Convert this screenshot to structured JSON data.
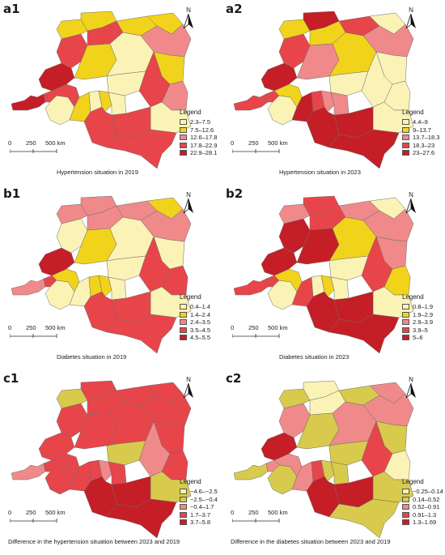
{
  "north_label": "N",
  "legend_title": "Legend",
  "scale": {
    "ticks": [
      "0",
      "250",
      "500 km"
    ]
  },
  "colors": {
    "c1": "#FBF3B6",
    "c2": "#F2D31B",
    "c3": "#F08A8A",
    "c4": "#E8454B",
    "c5": "#C51E26",
    "d1": "#FBF3B6",
    "d2": "#D8CA4C",
    "border": "#6b6b6b"
  },
  "panels": [
    {
      "id": "a1",
      "label": "a1",
      "caption": "Hypertension situation in 2019",
      "legend": [
        "2.3–7.5",
        "7.5–12.6",
        "12.6–17.8",
        "17.8–22.9",
        "22.9–28.1"
      ],
      "palette": [
        "c1",
        "c2",
        "c3",
        "c4",
        "c5"
      ]
    },
    {
      "id": "a2",
      "label": "a2",
      "caption": "Hypertension situation in 2023",
      "legend": [
        "4.4–9",
        "9–13.7",
        "13.7–18.3",
        "18.3–23",
        "23–27.6"
      ],
      "palette": [
        "c1",
        "c2",
        "c3",
        "c4",
        "c5"
      ]
    },
    {
      "id": "b1",
      "label": "b1",
      "caption": "Diabetes situation in 2019",
      "legend": [
        "0.4–1.4",
        "1.4–2.4",
        "2.4–3.5",
        "3.5–4.5",
        "4.5–5.5"
      ],
      "palette": [
        "c1",
        "c2",
        "c3",
        "c4",
        "c5"
      ]
    },
    {
      "id": "b2",
      "label": "b2",
      "caption": "Diabetes situation in 2023",
      "legend": [
        "0.8–1.9",
        "1.9–2.9",
        "2.9–3.9",
        "3.9–5",
        "5–6"
      ],
      "palette": [
        "c1",
        "c2",
        "c3",
        "c4",
        "c5"
      ]
    },
    {
      "id": "c1",
      "label": "c1",
      "caption": "Difference in the hypertension situation between 2023 and 2019",
      "legend": [
        "−4.6–−2.5",
        "−2.5–−0.4",
        "−0.4–1.7",
        "1.7–3.7",
        "3.7–5.8"
      ],
      "palette": [
        "d1",
        "d2",
        "c3",
        "c4",
        "c5"
      ]
    },
    {
      "id": "c2",
      "label": "c2",
      "caption": "Difference in the diabetes situation between 2023 and 2019",
      "legend": [
        "−0.25–0.14",
        "0.14–0.52",
        "0.52–0.91",
        "0.91–1.3",
        "1.3–1.69"
      ],
      "palette": [
        "d1",
        "d2",
        "c3",
        "c4",
        "c5"
      ]
    }
  ],
  "provinces": [
    "kongo-central",
    "kinshasa",
    "kwango",
    "kwilu",
    "mai-ndombe",
    "equateur",
    "sud-ubangi",
    "nord-ubangi",
    "mongala",
    "tshuapa",
    "tshopo",
    "bas-uele",
    "haut-uele",
    "ituri",
    "nord-kivu",
    "sud-kivu",
    "maniema",
    "sankuru",
    "kasai",
    "kasai-central",
    "kasai-oriental",
    "lomami",
    "tanganyika",
    "haut-lomami",
    "lualaba",
    "haut-katanga"
  ],
  "classes": {
    "a1": [
      4,
      3,
      0,
      3,
      4,
      3,
      1,
      1,
      3,
      1,
      0,
      1,
      1,
      2,
      1,
      2,
      3,
      0,
      1,
      0,
      1,
      0,
      0,
      3,
      3,
      3
    ],
    "a2": [
      3,
      3,
      0,
      1,
      4,
      3,
      1,
      4,
      1,
      2,
      1,
      3,
      0,
      2,
      0,
      0,
      0,
      0,
      4,
      3,
      2,
      2,
      0,
      4,
      4,
      4
    ],
    "b1": [
      2,
      3,
      0,
      1,
      4,
      0,
      2,
      2,
      2,
      1,
      0,
      2,
      1,
      2,
      0,
      3,
      3,
      0,
      0,
      1,
      1,
      0,
      0,
      3,
      3,
      3
    ],
    "b2": [
      3,
      3,
      0,
      1,
      4,
      4,
      2,
      3,
      3,
      4,
      1,
      2,
      0,
      2,
      2,
      1,
      3,
      0,
      3,
      0,
      1,
      0,
      0,
      4,
      4,
      4
    ],
    "c1": [
      2,
      3,
      3,
      3,
      3,
      3,
      1,
      3,
      3,
      3,
      3,
      3,
      3,
      3,
      3,
      3,
      2,
      1,
      3,
      3,
      2,
      3,
      1,
      4,
      4,
      4
    ],
    "c2": [
      1,
      2,
      1,
      2,
      4,
      2,
      1,
      0,
      0,
      1,
      2,
      1,
      2,
      2,
      1,
      0,
      3,
      1,
      2,
      3,
      1,
      1,
      1,
      4,
      4,
      1
    ]
  }
}
